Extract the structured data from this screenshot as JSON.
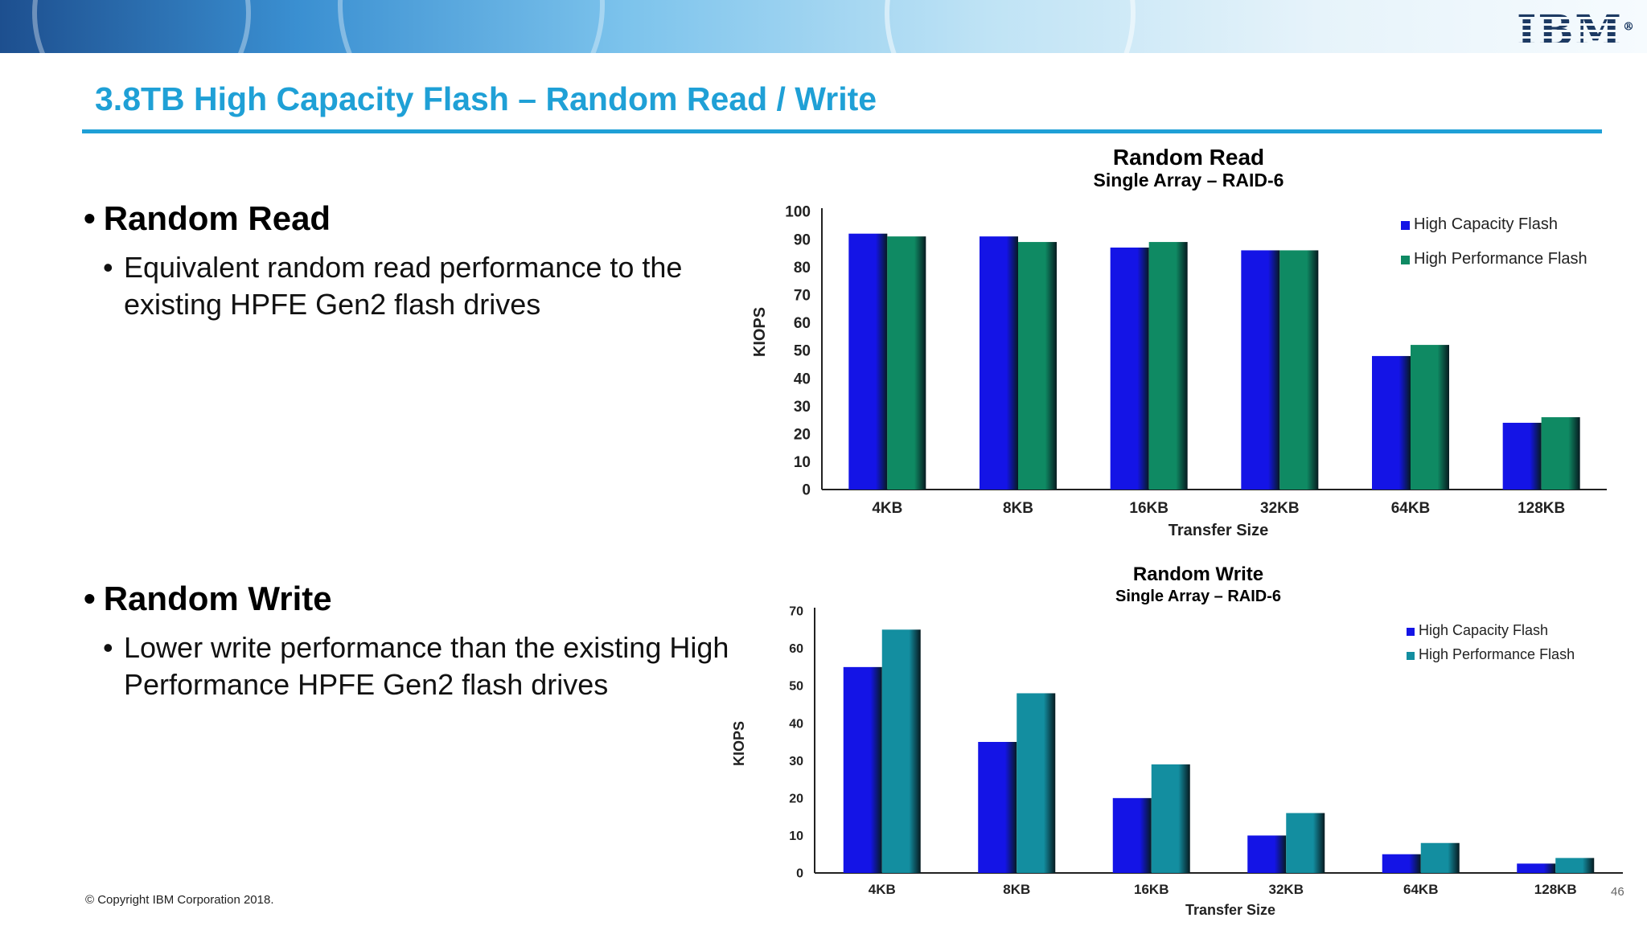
{
  "brand": {
    "logo_text": "IBM",
    "registered_mark": "®"
  },
  "slide": {
    "title": "3.8TB High Capacity Flash – Random Read / Write",
    "copyright": "© Copyright IBM Corporation 2018.",
    "page_number": "46"
  },
  "bullets": [
    {
      "heading": "Random Read",
      "sub": "Equivalent random read performance to the existing HPFE Gen2 flash drives"
    },
    {
      "heading": "Random Write",
      "sub": "Lower write performance than the existing High Performance HPFE Gen2 flash drives"
    }
  ],
  "colors": {
    "accent": "#1fa0d6",
    "high_capacity_flash": "#1414e6",
    "high_performance_flash_read": "#0f8a63",
    "high_performance_flash_write": "#138ea0"
  },
  "chart_data": [
    {
      "type": "bar",
      "title": "Random Read",
      "subtitle": "Single Array – RAID-6",
      "xlabel": "Transfer Size",
      "ylabel": "KIOPS",
      "ylim": [
        0,
        100
      ],
      "yticks": [
        0,
        10,
        20,
        30,
        40,
        50,
        60,
        70,
        80,
        90,
        100
      ],
      "categories": [
        "4KB",
        "8KB",
        "16KB",
        "32KB",
        "64KB",
        "128KB"
      ],
      "series": [
        {
          "name": "High Capacity Flash",
          "values": [
            92,
            91,
            87,
            86,
            48,
            24
          ]
        },
        {
          "name": "High Performance Flash",
          "values": [
            91,
            89,
            89,
            86,
            52,
            26
          ]
        }
      ],
      "legend": "top-right",
      "grid": false
    },
    {
      "type": "bar",
      "title": "Random Write",
      "subtitle": "Single Array – RAID-6",
      "xlabel": "Transfer Size",
      "ylabel": "KIOPS",
      "ylim": [
        0,
        70
      ],
      "yticks": [
        0,
        10,
        20,
        30,
        40,
        50,
        60,
        70
      ],
      "categories": [
        "4KB",
        "8KB",
        "16KB",
        "32KB",
        "64KB",
        "128KB"
      ],
      "series": [
        {
          "name": "High Capacity Flash",
          "values": [
            55,
            35,
            20,
            10,
            5,
            2.5
          ]
        },
        {
          "name": "High Performance Flash",
          "values": [
            65,
            48,
            29,
            16,
            8,
            4
          ]
        }
      ],
      "legend": "top-right",
      "grid": false
    }
  ]
}
